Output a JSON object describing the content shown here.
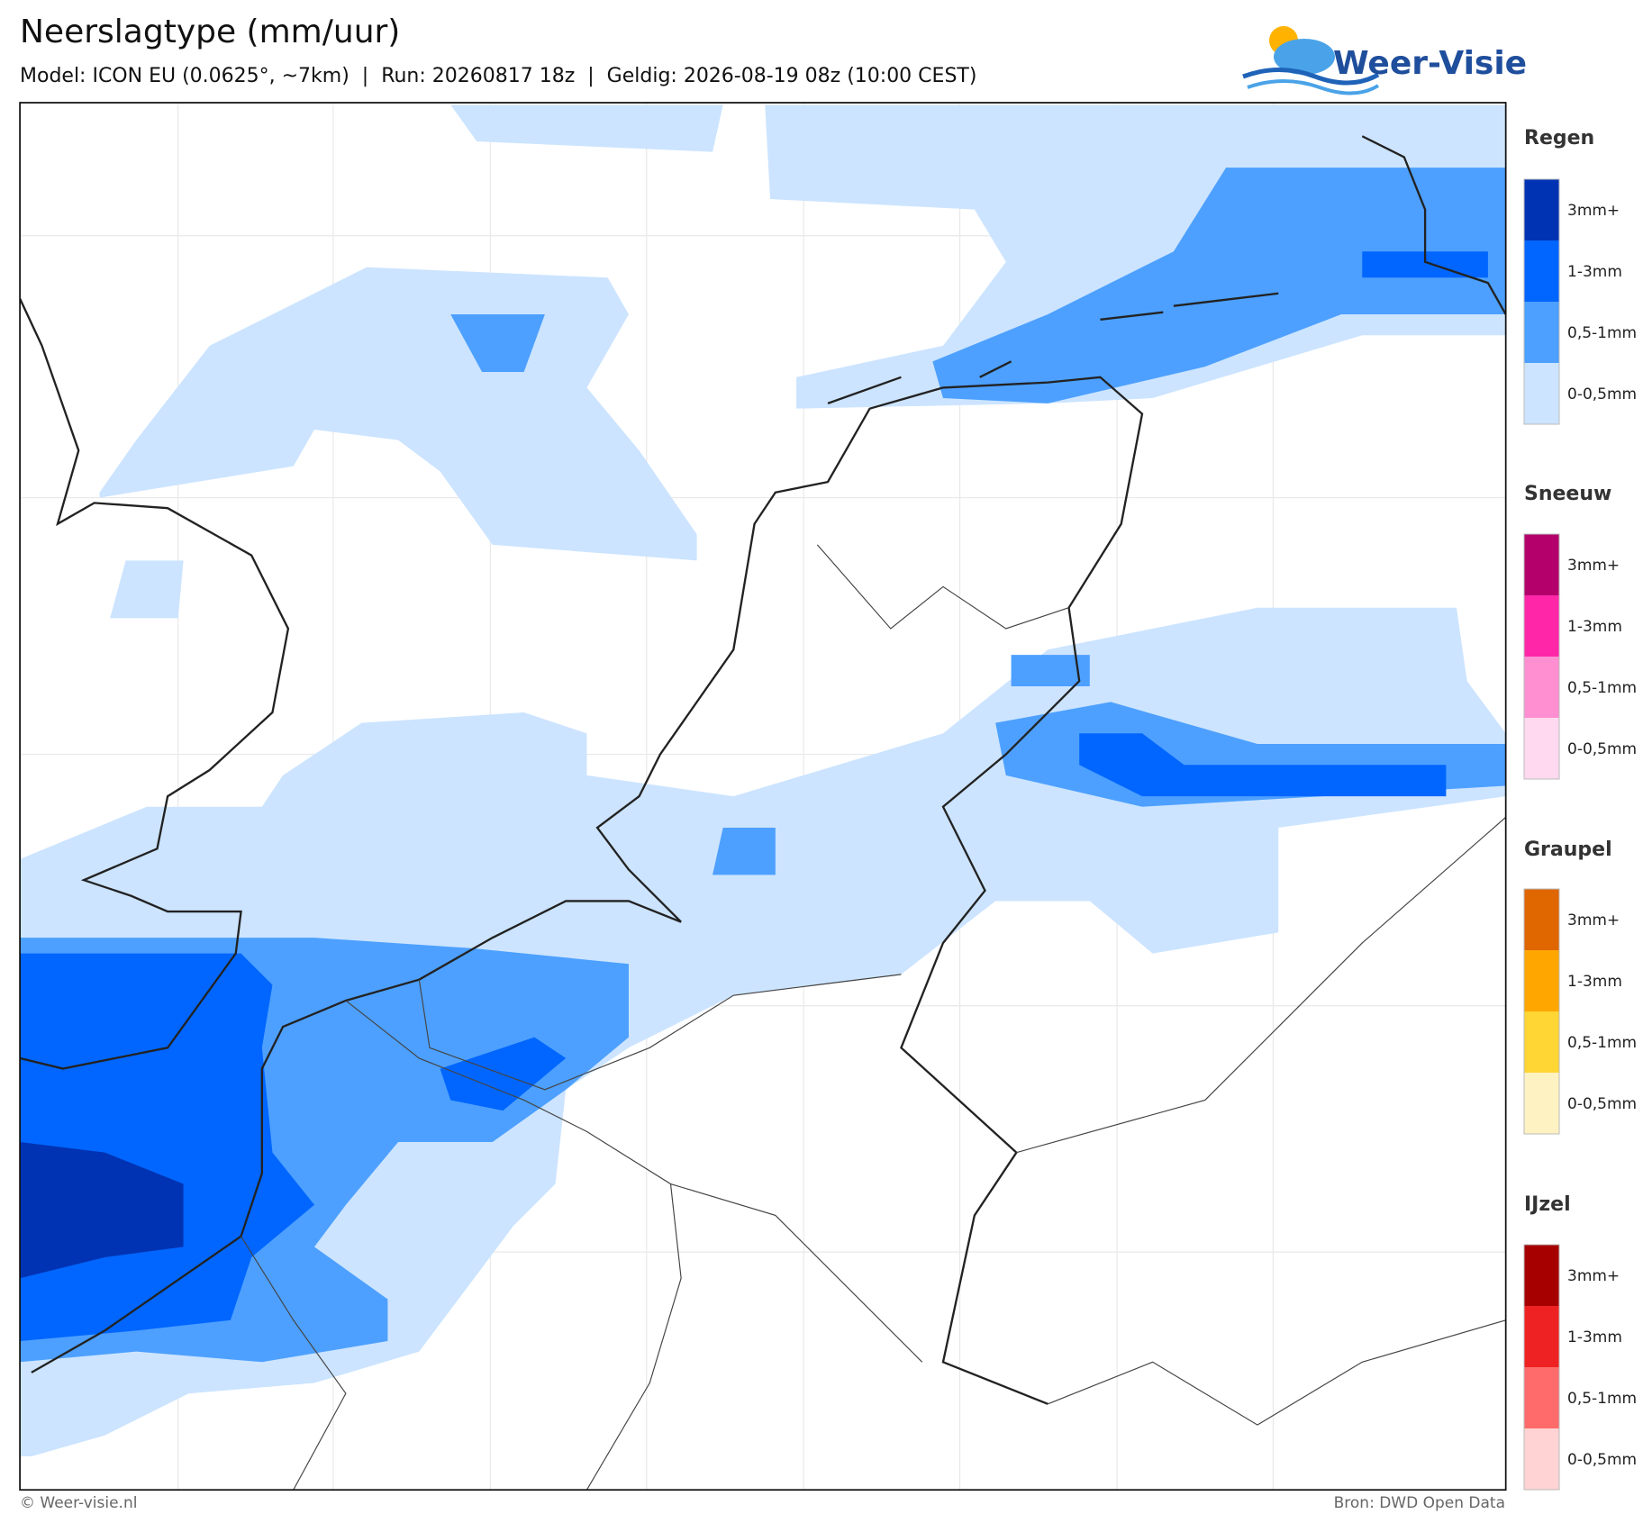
{
  "header": {
    "title": "Neerslagtype (mm/uur)",
    "subtitle": "Model: ICON EU (0.0625°, ~7km)  |  Run: 20260817 18z  |  Geldig: 2026-08-19 08z (10:00 CEST)"
  },
  "logo": {
    "text": "Weer-Visie"
  },
  "legend": [
    {
      "title": "Regen",
      "items": [
        {
          "label": "3mm+",
          "color": "#0033b3"
        },
        {
          "label": "1-3mm",
          "color": "#0066ff"
        },
        {
          "label": "0,5-1mm",
          "color": "#4da0ff"
        },
        {
          "label": "0-0,5mm",
          "color": "#cce4ff"
        }
      ]
    },
    {
      "title": "Sneeuw",
      "items": [
        {
          "label": "3mm+",
          "color": "#b3006b"
        },
        {
          "label": "1-3mm",
          "color": "#ff26a8"
        },
        {
          "label": "0,5-1mm",
          "color": "#ff8fd0"
        },
        {
          "label": "0-0,5mm",
          "color": "#ffd9ef"
        }
      ]
    },
    {
      "title": "Graupel",
      "items": [
        {
          "label": "3mm+",
          "color": "#e06600"
        },
        {
          "label": "1-3mm",
          "color": "#ffa600"
        },
        {
          "label": "0,5-1mm",
          "color": "#ffd633"
        },
        {
          "label": "0-0,5mm",
          "color": "#fff2c2"
        }
      ]
    },
    {
      "title": "IJzel",
      "items": [
        {
          "label": "3mm+",
          "color": "#a60000"
        },
        {
          "label": "1-3mm",
          "color": "#ee2222"
        },
        {
          "label": "0,5-1mm",
          "color": "#ff6b6b"
        },
        {
          "label": "0-0,5mm",
          "color": "#ffd3d3"
        }
      ]
    }
  ],
  "footer": {
    "left": "© Weer-visie.nl",
    "right": "Bron: DWD Open Data"
  }
}
